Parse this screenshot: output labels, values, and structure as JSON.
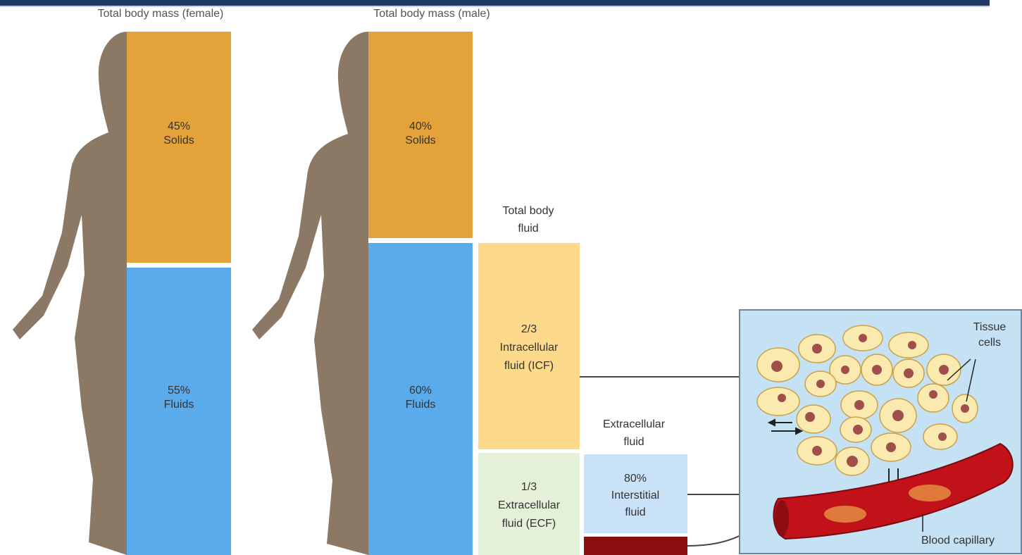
{
  "female": {
    "title": "Total body mass (female)",
    "solids": [
      "45%",
      "Solids"
    ],
    "fluids": [
      "55%",
      "Fluids"
    ]
  },
  "male": {
    "title": "Total body mass (male)",
    "solids": [
      "40%",
      "Solids"
    ],
    "fluids": [
      "60%",
      "Fluids"
    ]
  },
  "total_body_fluid": {
    "title": [
      "Total body",
      "fluid"
    ],
    "icf": [
      "2/3",
      "Intracellular",
      "fluid (ICF)"
    ],
    "ecf": [
      "1/3",
      "Extracellular",
      "fluid (ECF)"
    ]
  },
  "extracellular_fluid": {
    "title": [
      "Extracellular",
      "fluid"
    ],
    "interstitial": [
      "80%",
      "Interstitial",
      "fluid"
    ]
  },
  "inset": {
    "tissue_cells": [
      "Tissue",
      "cells"
    ],
    "blood_capillary": "Blood capillary"
  }
}
